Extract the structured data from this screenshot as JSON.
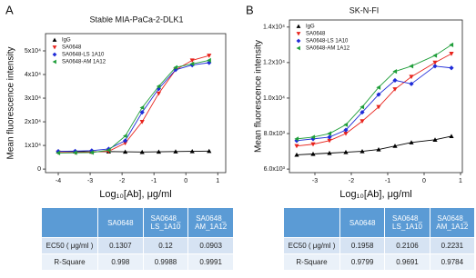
{
  "chart_data": [
    {
      "type": "line",
      "panel": "A",
      "title": "Stable MIA-PaCa-2-DLK1",
      "x_label": "Log₁₀[Ab], μg/ml",
      "y_label": "Mean fluorescence intensity",
      "xlim": [
        -4.4,
        1.25
      ],
      "xticks": [
        -4,
        -3,
        -2,
        -1,
        0,
        1
      ],
      "ylim": [
        -1500,
        57300
      ],
      "yticks": [
        0,
        {
          "value": 10000,
          "label": "1x10⁴"
        },
        {
          "value": 20000,
          "label": "2x10⁴"
        },
        {
          "value": 30000,
          "label": "3x10⁴"
        },
        {
          "value": 40000,
          "label": "4x10⁴"
        },
        {
          "value": 50000,
          "label": "5x10⁴"
        }
      ],
      "x": [
        -4,
        -3.47,
        -2.95,
        -2.42,
        -1.9,
        -1.37,
        -0.85,
        -0.32,
        0.2,
        0.73
      ],
      "series": [
        {
          "name": "IgG",
          "color": "#000000",
          "marker": "triangle-up",
          "values": [
            7500,
            7400,
            7300,
            7400,
            7300,
            7200,
            7300,
            7400,
            7500,
            7600
          ]
        },
        {
          "name": "SA0648",
          "color": "#e8231c",
          "marker": "triangle-down",
          "values": [
            7000,
            7000,
            7200,
            7500,
            11000,
            20000,
            32000,
            42000,
            46000,
            48000
          ]
        },
        {
          "name": "SA0648-LS 1A10",
          "color": "#1f2bd8",
          "marker": "diamond",
          "values": [
            7500,
            7600,
            7800,
            8500,
            12000,
            24000,
            34000,
            42000,
            44000,
            45000
          ]
        },
        {
          "name": "SA0648-AM 1A12",
          "color": "#1f9e3a",
          "marker": "triangle-left",
          "values": [
            6800,
            6900,
            7000,
            8000,
            14000,
            26000,
            35000,
            43000,
            44500,
            46000
          ]
        }
      ]
    },
    {
      "type": "line",
      "panel": "B",
      "title": "SK-N-FI",
      "x_label": "Log₁₀[Ab], μg/ml",
      "y_label": "Mean fluorescence intensity",
      "xlim": [
        -3.7,
        1.05
      ],
      "xticks": [
        -3,
        -2,
        -1,
        0,
        1
      ],
      "ylim": [
        5800,
        14400
      ],
      "yticks": [
        {
          "value": 6000,
          "label": "6.0x10³"
        },
        {
          "value": 8000,
          "label": "8.0x10³"
        },
        {
          "value": 10000,
          "label": "1.0x10⁴"
        },
        {
          "value": 12000,
          "label": "1.2x10⁴"
        },
        {
          "value": 14000,
          "label": "1.4x10⁴"
        }
      ],
      "x": [
        -3.5,
        -3.05,
        -2.6,
        -2.15,
        -1.7,
        -1.25,
        -0.8,
        -0.35,
        0.3,
        0.75
      ],
      "series": [
        {
          "name": "IgG",
          "color": "#000000",
          "marker": "triangle-up",
          "values": [
            6800,
            6850,
            6900,
            6950,
            7000,
            7100,
            7300,
            7500,
            7650,
            7850
          ]
        },
        {
          "name": "SA0648",
          "color": "#e8231c",
          "marker": "triangle-down",
          "values": [
            7300,
            7400,
            7600,
            8000,
            8700,
            9500,
            10500,
            11200,
            12000,
            12500
          ]
        },
        {
          "name": "SA0648-LS 1A10",
          "color": "#1f2bd8",
          "marker": "diamond",
          "values": [
            7600,
            7700,
            7800,
            8200,
            9200,
            10200,
            11000,
            10800,
            11800,
            11700
          ]
        },
        {
          "name": "SA0648-AM 1A12",
          "color": "#1f9e3a",
          "marker": "triangle-left",
          "values": [
            7700,
            7800,
            8000,
            8500,
            9500,
            10600,
            11500,
            11800,
            12400,
            13000
          ]
        }
      ]
    }
  ],
  "tables": [
    {
      "header": [
        "SA0648",
        "SA0648_ LS_1A10",
        "SA0648_ AM_1A12"
      ],
      "rows": [
        {
          "label": "EC50 ( μg/ml )",
          "values": [
            0.1307,
            0.12,
            0.0903
          ]
        },
        {
          "label": "R-Square",
          "values": [
            0.998,
            0.9988,
            0.9991
          ]
        }
      ]
    },
    {
      "header": [
        "SA0648",
        "SA0648_ LS_1A10",
        "SA0648_ AM_1A12"
      ],
      "rows": [
        {
          "label": "EC50 ( μg/ml )",
          "values": [
            0.1958,
            0.2106,
            0.2231
          ]
        },
        {
          "label": "R-Square",
          "values": [
            0.9799,
            0.9691,
            0.9784
          ]
        }
      ]
    }
  ]
}
